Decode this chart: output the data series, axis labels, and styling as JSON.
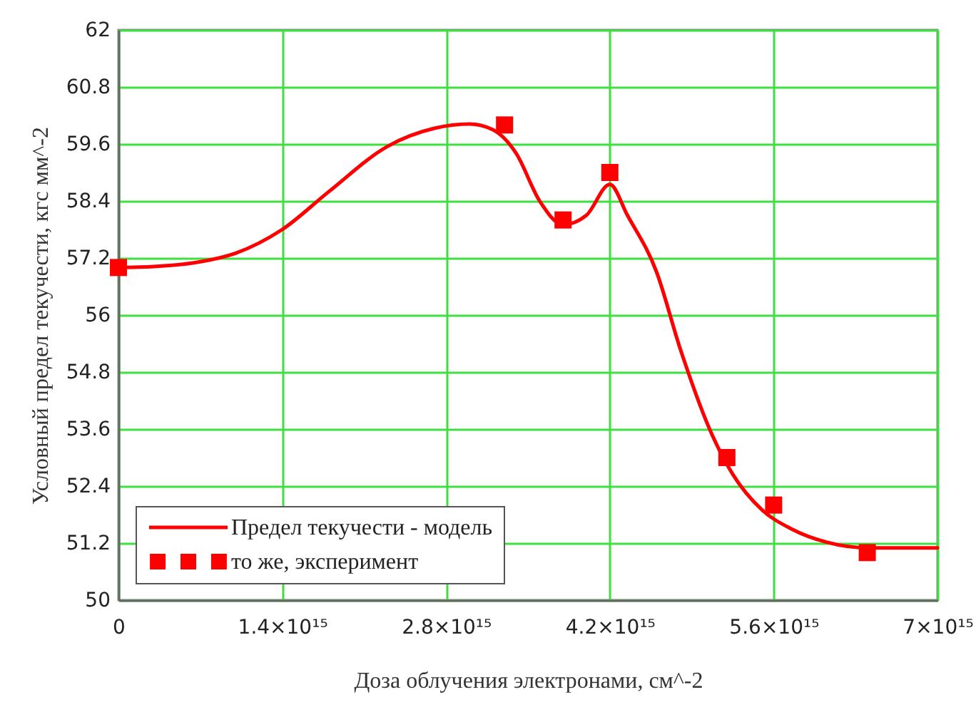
{
  "chart_data": {
    "type": "line",
    "xlabel": "Доза облучения электронами, см^-2",
    "ylabel": "Условный предел текучести, кгс мм^-2",
    "xlim": [
      0,
      7000000000000000.0
    ],
    "ylim": [
      50,
      62
    ],
    "xticks": [
      0,
      {
        "value": 1400000000000000.0,
        "label": "1.4×10¹⁵"
      },
      {
        "value": 2800000000000000.0,
        "label": "2.8×10¹⁵"
      },
      {
        "value": 4200000000000000.0,
        "label": "4.2×10¹⁵"
      },
      {
        "value": 5600000000000000.0,
        "label": "5.6×10¹⁵"
      },
      {
        "value": 7000000000000000.0,
        "label": "7×10¹⁵"
      }
    ],
    "yticks": [
      50,
      51.2,
      52.4,
      53.6,
      54.8,
      56,
      57.2,
      58.4,
      59.6,
      60.8,
      62
    ],
    "grid": true,
    "legend": "bottom left",
    "series": [
      {
        "name": "Предел текучести - модель",
        "line_style": "solid",
        "color": "#ff0000",
        "x": [
          0,
          300000000000000.0,
          700000000000000.0,
          1000000000000000.0,
          1400000000000000.0,
          1800000000000000.0,
          2300000000000000.0,
          2700000000000000.0,
          3000000000000000.0,
          3200000000000000.0,
          3400000000000000.0,
          3600000000000000.0,
          3800000000000000.0,
          4000000000000000.0,
          4200000000000000.0,
          4350000000000000.0,
          4600000000000000.0,
          4800000000000000.0,
          5070000000000000.0,
          5250000000000000.0,
          5500000000000000.0,
          5750000000000000.0,
          6050000000000000.0,
          6400000000000000.0,
          7000000000000000.0
        ],
        "values": [
          57.0,
          57.02,
          57.12,
          57.3,
          57.8,
          58.6,
          59.55,
          59.93,
          60.02,
          59.9,
          59.4,
          58.4,
          57.9,
          58.1,
          58.75,
          58.1,
          56.9,
          55.3,
          53.5,
          52.65,
          51.9,
          51.5,
          51.22,
          51.1,
          51.1
        ]
      },
      {
        "name": "то же, эксперимент",
        "type": "scatter",
        "marker": "square",
        "color": "#ff0000",
        "x": [
          0,
          3300000000000000.0,
          3800000000000000.0,
          4200000000000000.0,
          5200000000000000.0,
          5600000000000000.0,
          6400000000000000.0
        ],
        "values": [
          57.0,
          60.0,
          58.0,
          59.0,
          53.0,
          52.0,
          51.0
        ]
      }
    ]
  }
}
